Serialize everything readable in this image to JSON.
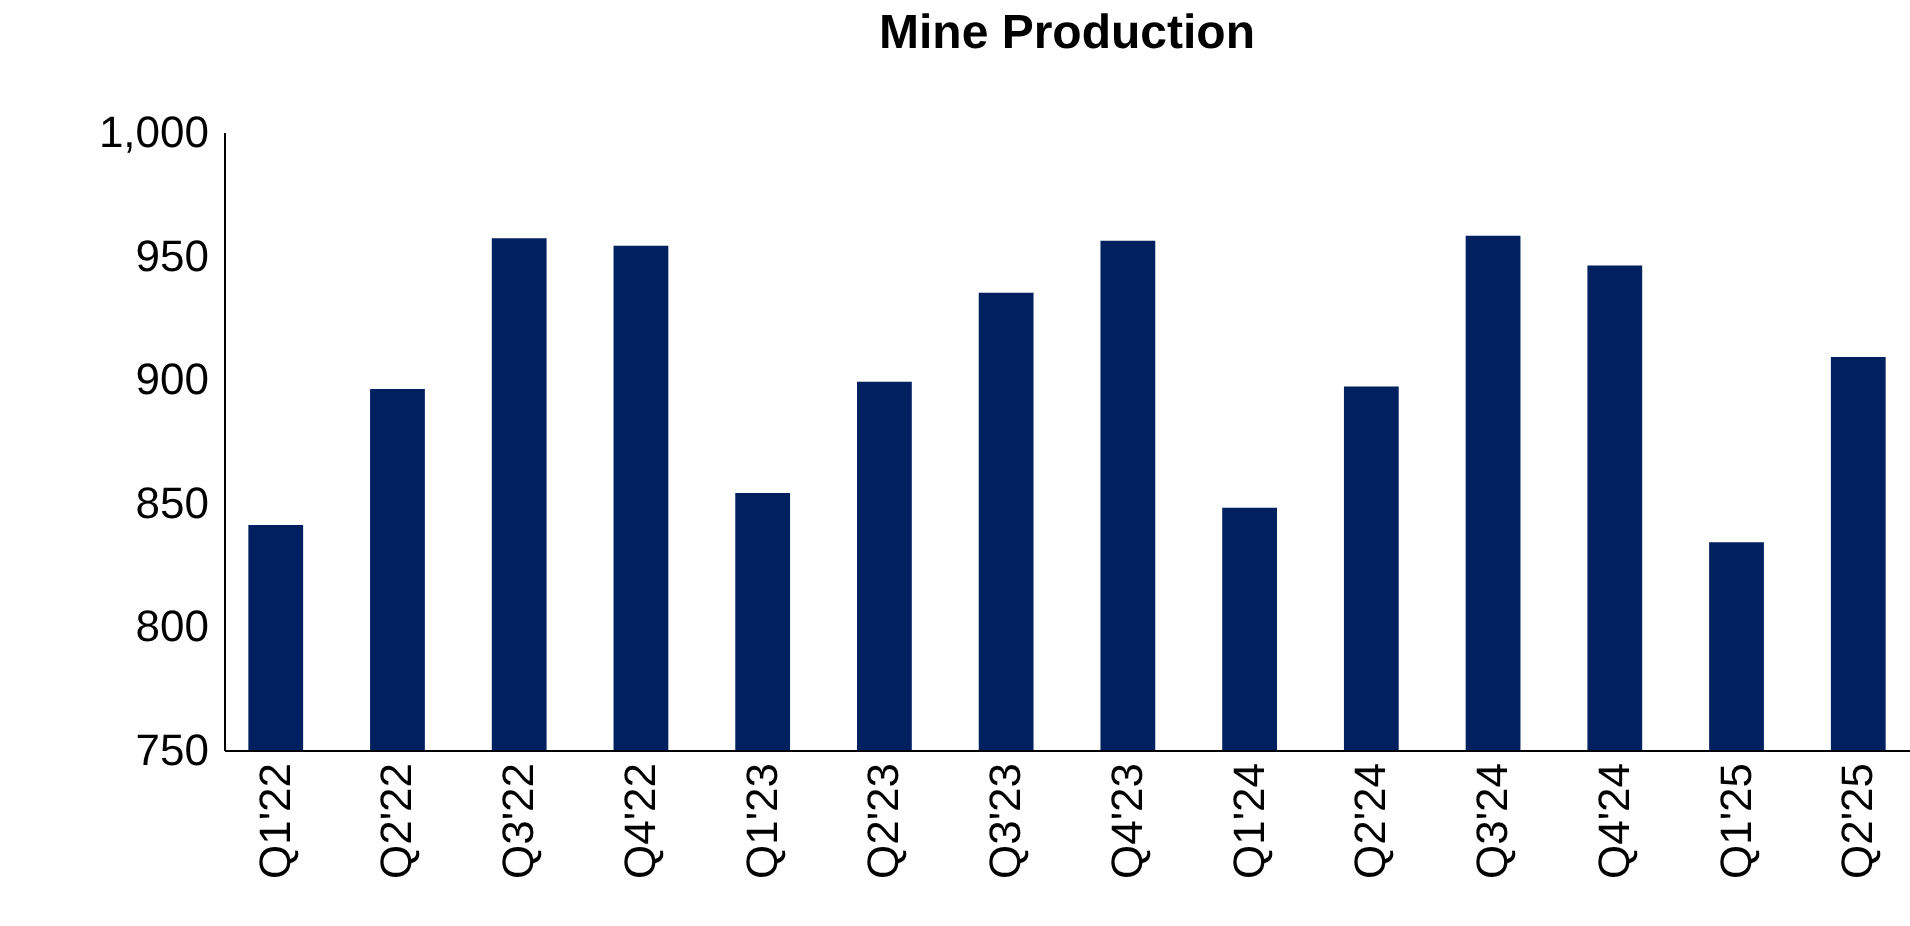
{
  "chart_data": {
    "type": "bar",
    "title": "Mine Production",
    "categories": [
      "Q1'22",
      "Q2'22",
      "Q3'22",
      "Q4'22",
      "Q1'23",
      "Q2'23",
      "Q3'23",
      "Q4'23",
      "Q1'24",
      "Q2'24",
      "Q3'24",
      "Q4'24",
      "Q1'25",
      "Q2'25"
    ],
    "values": [
      841,
      896,
      957,
      954,
      854,
      899,
      935,
      956,
      848,
      897,
      958,
      946,
      834,
      909
    ],
    "color": "#002060",
    "ylim": [
      750,
      1000
    ],
    "yticks": [
      750,
      800,
      850,
      900,
      950,
      {
        "value": 1000,
        "label": "1,000"
      }
    ],
    "grid": false
  }
}
